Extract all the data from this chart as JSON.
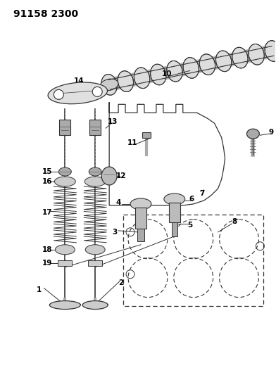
{
  "title": "91158 2300",
  "bg_color": "#ffffff",
  "line_color": "#000000",
  "title_fontsize": 10,
  "label_fontsize": 7.5,
  "fig_width": 3.92,
  "fig_height": 5.33,
  "dpi": 100
}
